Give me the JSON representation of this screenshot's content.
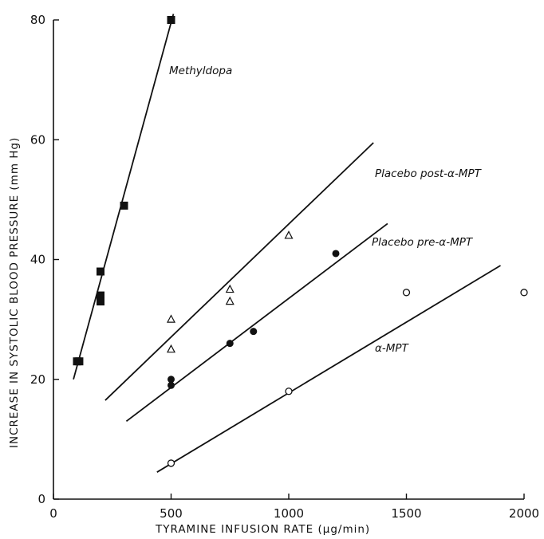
{
  "chart_data": {
    "type": "scatter",
    "xlabel": "TYRAMINE INFUSION RATE (μg/min)",
    "ylabel": "INCREASE IN SYSTOLIC BLOOD PRESSURE (mm Hg)",
    "xlim": [
      0,
      2000
    ],
    "ylim": [
      0,
      80
    ],
    "x_ticks": [
      0,
      500,
      1000,
      1500,
      2000
    ],
    "y_ticks": [
      0,
      20,
      40,
      60,
      80
    ],
    "grid": false,
    "legend": "none (series labelled directly on plot)",
    "series": [
      {
        "name": "Methyldopa",
        "marker": "filled-square",
        "points": [
          [
            100,
            23
          ],
          [
            110,
            23
          ],
          [
            200,
            38
          ],
          [
            200,
            34
          ],
          [
            200,
            33
          ],
          [
            300,
            49
          ],
          [
            500,
            80
          ]
        ],
        "fit": [
          [
            85,
            20
          ],
          [
            510,
            81
          ]
        ]
      },
      {
        "name": "Placebo post-α-MPT",
        "marker": "open-triangle",
        "points": [
          [
            500,
            30
          ],
          [
            500,
            25
          ],
          [
            750,
            35
          ],
          [
            750,
            33
          ],
          [
            1000,
            44
          ]
        ],
        "fit": [
          [
            220,
            16.5
          ],
          [
            1360,
            59.5
          ]
        ]
      },
      {
        "name": "Placebo pre-α-MPT",
        "marker": "filled-circle",
        "points": [
          [
            500,
            20
          ],
          [
            500,
            19
          ],
          [
            750,
            26
          ],
          [
            850,
            28
          ],
          [
            1200,
            41
          ]
        ],
        "fit": [
          [
            310,
            13
          ],
          [
            1420,
            46
          ]
        ]
      },
      {
        "name": "α-MPT",
        "marker": "open-circle",
        "points": [
          [
            500,
            6
          ],
          [
            1000,
            18
          ],
          [
            1500,
            34.5
          ],
          [
            2000,
            34.5
          ]
        ],
        "fit": [
          [
            440,
            4.5
          ],
          [
            1900,
            39
          ]
        ]
      }
    ]
  }
}
